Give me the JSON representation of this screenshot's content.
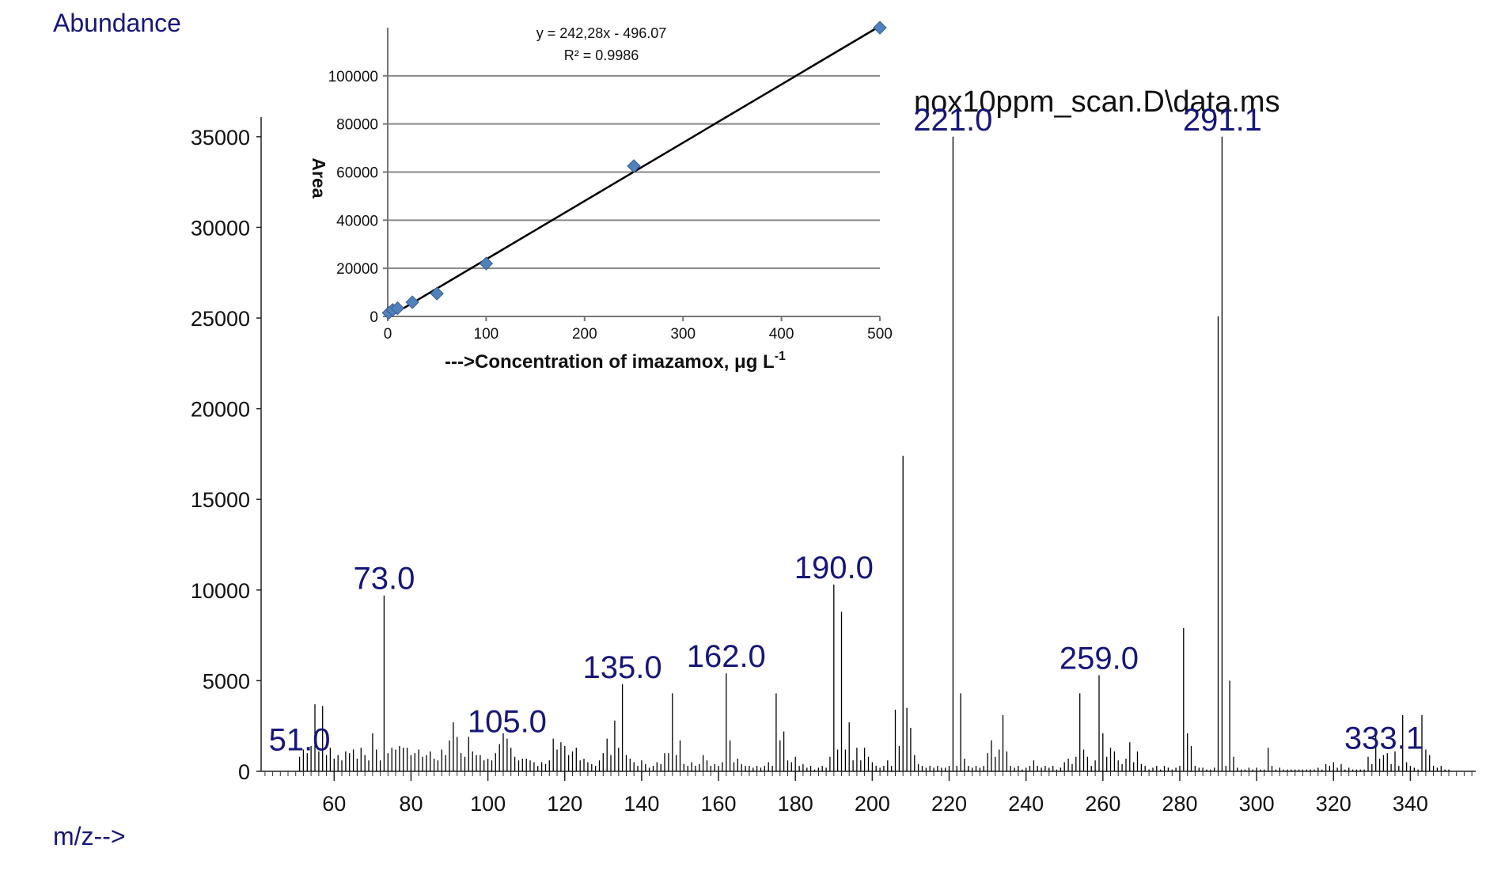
{
  "chart_data": [
    {
      "type": "bar",
      "ylabel": "Abundance",
      "xlabel": "m/z-->",
      "file_label": "nox10ppm_scan.D\\data.ms",
      "xlim": [
        41,
        357
      ],
      "ylim": [
        0,
        37000
      ],
      "xticks": [
        60,
        80,
        100,
        120,
        140,
        160,
        180,
        200,
        220,
        240,
        260,
        280,
        300,
        320,
        340
      ],
      "yticks": [
        0,
        5000,
        10000,
        15000,
        20000,
        25000,
        30000,
        35000
      ],
      "peak_labels": [
        {
          "text": "51.0",
          "mz": 51.0
        },
        {
          "text": "73.0",
          "mz": 73.0
        },
        {
          "text": "105.0",
          "mz": 105.0
        },
        {
          "text": "135.0",
          "mz": 135.0
        },
        {
          "text": "162.0",
          "mz": 162.0
        },
        {
          "text": "190.0",
          "mz": 190.0
        },
        {
          "text": "221.0",
          "mz": 221.0
        },
        {
          "text": "259.0",
          "mz": 259.0
        },
        {
          "text": "291.1",
          "mz": 291.1
        },
        {
          "text": "333.1",
          "mz": 333.1
        }
      ],
      "peaks": [
        [
          51,
          800
        ],
        [
          52,
          1200
        ],
        [
          53,
          1000
        ],
        [
          54,
          1400
        ],
        [
          55,
          3700
        ],
        [
          56,
          1100
        ],
        [
          57,
          3600
        ],
        [
          58,
          900
        ],
        [
          59,
          1300
        ],
        [
          60,
          700
        ],
        [
          61,
          900
        ],
        [
          62,
          600
        ],
        [
          63,
          1100
        ],
        [
          64,
          1000
        ],
        [
          65,
          1200
        ],
        [
          66,
          700
        ],
        [
          67,
          1300
        ],
        [
          68,
          900
        ],
        [
          69,
          600
        ],
        [
          70,
          2100
        ],
        [
          71,
          1200
        ],
        [
          72,
          600
        ],
        [
          73,
          9700
        ],
        [
          74,
          1000
        ],
        [
          75,
          1300
        ],
        [
          76,
          1200
        ],
        [
          77,
          1400
        ],
        [
          78,
          1300
        ],
        [
          79,
          1300
        ],
        [
          80,
          900
        ],
        [
          81,
          1000
        ],
        [
          82,
          1200
        ],
        [
          83,
          800
        ],
        [
          84,
          900
        ],
        [
          85,
          1100
        ],
        [
          86,
          700
        ],
        [
          87,
          600
        ],
        [
          88,
          1200
        ],
        [
          89,
          900
        ],
        [
          90,
          1700
        ],
        [
          91,
          2700
        ],
        [
          92,
          1900
        ],
        [
          93,
          1000
        ],
        [
          94,
          800
        ],
        [
          95,
          1900
        ],
        [
          96,
          1100
        ],
        [
          97,
          900
        ],
        [
          98,
          900
        ],
        [
          99,
          600
        ],
        [
          100,
          700
        ],
        [
          101,
          600
        ],
        [
          102,
          1000
        ],
        [
          103,
          1500
        ],
        [
          104,
          2100
        ],
        [
          105,
          1800
        ],
        [
          106,
          1300
        ],
        [
          107,
          800
        ],
        [
          108,
          600
        ],
        [
          109,
          700
        ],
        [
          110,
          700
        ],
        [
          111,
          600
        ],
        [
          112,
          500
        ],
        [
          113,
          300
        ],
        [
          114,
          500
        ],
        [
          115,
          400
        ],
        [
          116,
          600
        ],
        [
          117,
          1800
        ],
        [
          118,
          1200
        ],
        [
          119,
          1600
        ],
        [
          120,
          1400
        ],
        [
          121,
          900
        ],
        [
          122,
          1100
        ],
        [
          123,
          1300
        ],
        [
          124,
          600
        ],
        [
          125,
          700
        ],
        [
          126,
          500
        ],
        [
          127,
          400
        ],
        [
          128,
          300
        ],
        [
          129,
          600
        ],
        [
          130,
          1000
        ],
        [
          131,
          1800
        ],
        [
          132,
          900
        ],
        [
          133,
          2800
        ],
        [
          134,
          1300
        ],
        [
          135,
          4800
        ],
        [
          136,
          900
        ],
        [
          137,
          700
        ],
        [
          138,
          500
        ],
        [
          139,
          300
        ],
        [
          140,
          600
        ],
        [
          141,
          400
        ],
        [
          142,
          200
        ],
        [
          143,
          300
        ],
        [
          144,
          500
        ],
        [
          145,
          400
        ],
        [
          146,
          1000
        ],
        [
          147,
          1000
        ],
        [
          148,
          4300
        ],
        [
          149,
          900
        ],
        [
          150,
          1700
        ],
        [
          151,
          400
        ],
        [
          152,
          300
        ],
        [
          153,
          500
        ],
        [
          154,
          300
        ],
        [
          155,
          400
        ],
        [
          156,
          900
        ],
        [
          157,
          600
        ],
        [
          158,
          300
        ],
        [
          159,
          400
        ],
        [
          160,
          300
        ],
        [
          161,
          500
        ],
        [
          162,
          5400
        ],
        [
          163,
          1700
        ],
        [
          164,
          500
        ],
        [
          165,
          700
        ],
        [
          166,
          400
        ],
        [
          167,
          300
        ],
        [
          168,
          300
        ],
        [
          169,
          200
        ],
        [
          170,
          300
        ],
        [
          171,
          200
        ],
        [
          172,
          300
        ],
        [
          173,
          500
        ],
        [
          174,
          300
        ],
        [
          175,
          4300
        ],
        [
          176,
          1700
        ],
        [
          177,
          2200
        ],
        [
          178,
          600
        ],
        [
          179,
          500
        ],
        [
          180,
          800
        ],
        [
          181,
          300
        ],
        [
          182,
          400
        ],
        [
          183,
          200
        ],
        [
          184,
          300
        ],
        [
          185,
          100
        ],
        [
          186,
          200
        ],
        [
          187,
          300
        ],
        [
          188,
          200
        ],
        [
          189,
          800
        ],
        [
          190,
          10300
        ],
        [
          191,
          1200
        ],
        [
          192,
          8800
        ],
        [
          193,
          1200
        ],
        [
          194,
          2700
        ],
        [
          195,
          600
        ],
        [
          196,
          1300
        ],
        [
          197,
          600
        ],
        [
          198,
          1300
        ],
        [
          199,
          800
        ],
        [
          200,
          500
        ],
        [
          201,
          300
        ],
        [
          202,
          200
        ],
        [
          203,
          300
        ],
        [
          204,
          600
        ],
        [
          205,
          300
        ],
        [
          206,
          3400
        ],
        [
          207,
          1400
        ],
        [
          208,
          17400
        ],
        [
          209,
          3500
        ],
        [
          210,
          2400
        ],
        [
          211,
          900
        ],
        [
          212,
          400
        ],
        [
          213,
          300
        ],
        [
          214,
          200
        ],
        [
          215,
          300
        ],
        [
          216,
          200
        ],
        [
          217,
          300
        ],
        [
          218,
          200
        ],
        [
          219,
          200
        ],
        [
          220,
          300
        ],
        [
          221,
          35000
        ],
        [
          222,
          300
        ],
        [
          223,
          4300
        ],
        [
          224,
          700
        ],
        [
          225,
          300
        ],
        [
          226,
          200
        ],
        [
          227,
          300
        ],
        [
          228,
          200
        ],
        [
          229,
          300
        ],
        [
          230,
          1000
        ],
        [
          231,
          1700
        ],
        [
          232,
          800
        ],
        [
          233,
          1200
        ],
        [
          234,
          3100
        ],
        [
          235,
          1100
        ],
        [
          236,
          300
        ],
        [
          237,
          200
        ],
        [
          238,
          300
        ],
        [
          239,
          100
        ],
        [
          240,
          200
        ],
        [
          241,
          300
        ],
        [
          242,
          600
        ],
        [
          243,
          300
        ],
        [
          244,
          200
        ],
        [
          245,
          300
        ],
        [
          246,
          200
        ],
        [
          247,
          300
        ],
        [
          248,
          100
        ],
        [
          249,
          200
        ],
        [
          250,
          500
        ],
        [
          251,
          700
        ],
        [
          252,
          400
        ],
        [
          253,
          800
        ],
        [
          254,
          4300
        ],
        [
          255,
          1200
        ],
        [
          256,
          800
        ],
        [
          257,
          300
        ],
        [
          258,
          600
        ],
        [
          259,
          5300
        ],
        [
          260,
          2100
        ],
        [
          261,
          800
        ],
        [
          262,
          1300
        ],
        [
          263,
          1100
        ],
        [
          264,
          600
        ],
        [
          265,
          400
        ],
        [
          266,
          700
        ],
        [
          267,
          1600
        ],
        [
          268,
          500
        ],
        [
          269,
          1100
        ],
        [
          270,
          400
        ],
        [
          271,
          300
        ],
        [
          272,
          100
        ],
        [
          273,
          200
        ],
        [
          274,
          300
        ],
        [
          275,
          100
        ],
        [
          276,
          300
        ],
        [
          277,
          200
        ],
        [
          278,
          100
        ],
        [
          279,
          200
        ],
        [
          280,
          300
        ],
        [
          281,
          7900
        ],
        [
          282,
          2100
        ],
        [
          283,
          1400
        ],
        [
          284,
          300
        ],
        [
          285,
          200
        ],
        [
          286,
          200
        ],
        [
          287,
          100
        ],
        [
          288,
          100
        ],
        [
          289,
          200
        ],
        [
          290,
          25100
        ],
        [
          291,
          35000
        ],
        [
          292,
          300
        ],
        [
          293,
          5000
        ],
        [
          294,
          800
        ],
        [
          295,
          200
        ],
        [
          296,
          100
        ],
        [
          297,
          100
        ],
        [
          298,
          200
        ],
        [
          299,
          100
        ],
        [
          300,
          200
        ],
        [
          301,
          100
        ],
        [
          302,
          100
        ],
        [
          303,
          1300
        ],
        [
          304,
          300
        ],
        [
          305,
          100
        ],
        [
          306,
          200
        ],
        [
          307,
          100
        ],
        [
          308,
          100
        ],
        [
          309,
          100
        ],
        [
          310,
          100
        ],
        [
          311,
          100
        ],
        [
          312,
          100
        ],
        [
          313,
          100
        ],
        [
          314,
          100
        ],
        [
          315,
          100
        ],
        [
          316,
          200
        ],
        [
          317,
          100
        ],
        [
          318,
          400
        ],
        [
          319,
          300
        ],
        [
          320,
          500
        ],
        [
          321,
          200
        ],
        [
          322,
          400
        ],
        [
          323,
          100
        ],
        [
          324,
          200
        ],
        [
          325,
          100
        ],
        [
          326,
          100
        ],
        [
          327,
          100
        ],
        [
          328,
          100
        ],
        [
          329,
          800
        ],
        [
          330,
          400
        ],
        [
          331,
          2100
        ],
        [
          332,
          700
        ],
        [
          333,
          900
        ],
        [
          334,
          1000
        ],
        [
          335,
          400
        ],
        [
          336,
          1100
        ],
        [
          337,
          300
        ],
        [
          338,
          3100
        ],
        [
          339,
          500
        ],
        [
          340,
          300
        ],
        [
          341,
          200
        ],
        [
          342,
          100
        ],
        [
          343,
          3100
        ],
        [
          344,
          1200
        ],
        [
          345,
          900
        ],
        [
          346,
          300
        ],
        [
          347,
          200
        ],
        [
          348,
          300
        ],
        [
          349,
          100
        ],
        [
          350,
          100
        ]
      ]
    },
    {
      "type": "scatter",
      "xlabel": "--->Concentration of imazamox, μg L",
      "xlabel_sup": "-1",
      "ylabel": "Area",
      "equation": "y = 242,28x - 496.07",
      "r2": "R² = 0.9986",
      "xlim": [
        0,
        500
      ],
      "ylim": [
        0,
        120000
      ],
      "xticks": [
        0,
        100,
        200,
        300,
        400,
        500
      ],
      "yticks": [
        0,
        20000,
        40000,
        60000,
        80000,
        100000
      ],
      "grid": true,
      "marker_color": "#4f81bd",
      "points": [
        [
          1,
          1500
        ],
        [
          5,
          2700
        ],
        [
          10,
          3400
        ],
        [
          25,
          5900
        ],
        [
          50,
          9500
        ],
        [
          100,
          22000
        ],
        [
          250,
          62500
        ],
        [
          500,
          120000
        ]
      ],
      "fit": {
        "slope": 242.28,
        "intercept": -496.07
      }
    }
  ]
}
